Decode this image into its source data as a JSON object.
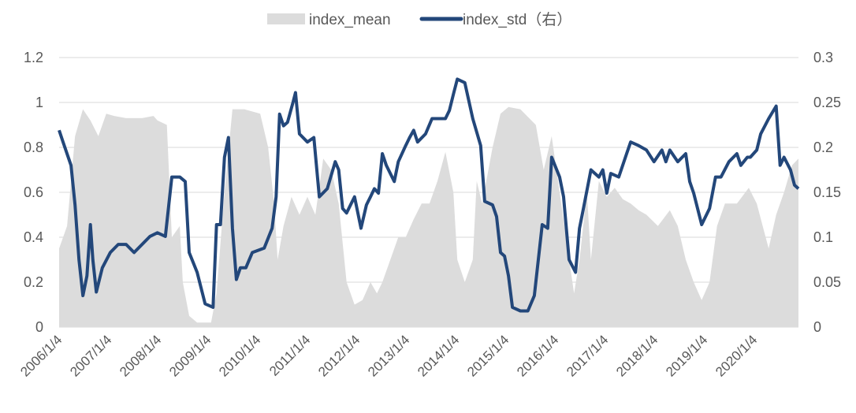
{
  "chart_data": {
    "type": "area+line",
    "title": "",
    "legend_position": "top-center",
    "grid": true,
    "colors": {
      "index_mean": "#dcdcdc",
      "index_std": "#23477a",
      "grid": "#d9d9d9"
    },
    "left_axis": {
      "ylim": [
        0,
        1.2
      ],
      "ticks": [
        "0",
        "0.2",
        "0.4",
        "0.6",
        "0.8",
        "1",
        "1.2"
      ]
    },
    "right_axis": {
      "ylim": [
        0,
        0.3
      ],
      "ticks": [
        "0",
        "0.05",
        "0.1",
        "0.15",
        "0.2",
        "0.25",
        "0.3"
      ]
    },
    "x_range_years": [
      2006.0,
      2020.89
    ],
    "x_ticks": [
      "2006/1/4",
      "2007/1/4",
      "2008/1/4",
      "2009/1/4",
      "2010/1/4",
      "2011/1/4",
      "2012/1/4",
      "2013/1/4",
      "2014/1/4",
      "2015/1/4",
      "2016/1/4",
      "2017/1/4",
      "2018/1/4",
      "2019/1/4",
      "2020/1/4"
    ],
    "series": [
      {
        "name": "index_mean",
        "axis": "left",
        "kind": "area",
        "points": [
          [
            2006.0,
            0.35
          ],
          [
            2006.16,
            0.45
          ],
          [
            2006.32,
            0.85
          ],
          [
            2006.48,
            0.97
          ],
          [
            2006.63,
            0.92
          ],
          [
            2006.79,
            0.85
          ],
          [
            2006.95,
            0.95
          ],
          [
            2007.11,
            0.94
          ],
          [
            2007.35,
            0.93
          ],
          [
            2007.67,
            0.93
          ],
          [
            2007.9,
            0.94
          ],
          [
            2007.98,
            0.92
          ],
          [
            2008.17,
            0.9
          ],
          [
            2008.27,
            0.4
          ],
          [
            2008.43,
            0.45
          ],
          [
            2008.49,
            0.2
          ],
          [
            2008.62,
            0.05
          ],
          [
            2008.78,
            0.02
          ],
          [
            2009.06,
            0.02
          ],
          [
            2009.17,
            0.15
          ],
          [
            2009.33,
            0.6
          ],
          [
            2009.49,
            0.97
          ],
          [
            2009.73,
            0.97
          ],
          [
            2010.05,
            0.95
          ],
          [
            2010.21,
            0.8
          ],
          [
            2010.33,
            0.55
          ],
          [
            2010.4,
            0.3
          ],
          [
            2010.52,
            0.45
          ],
          [
            2010.68,
            0.58
          ],
          [
            2010.84,
            0.5
          ],
          [
            2011.0,
            0.58
          ],
          [
            2011.16,
            0.5
          ],
          [
            2011.32,
            0.75
          ],
          [
            2011.48,
            0.7
          ],
          [
            2011.63,
            0.55
          ],
          [
            2011.79,
            0.2
          ],
          [
            2011.95,
            0.1
          ],
          [
            2012.11,
            0.12
          ],
          [
            2012.27,
            0.2
          ],
          [
            2012.4,
            0.15
          ],
          [
            2012.51,
            0.2
          ],
          [
            2012.67,
            0.3
          ],
          [
            2012.83,
            0.4
          ],
          [
            2012.98,
            0.4
          ],
          [
            2013.14,
            0.48
          ],
          [
            2013.3,
            0.55
          ],
          [
            2013.46,
            0.55
          ],
          [
            2013.62,
            0.65
          ],
          [
            2013.78,
            0.78
          ],
          [
            2013.94,
            0.6
          ],
          [
            2014.02,
            0.3
          ],
          [
            2014.17,
            0.2
          ],
          [
            2014.33,
            0.3
          ],
          [
            2014.41,
            0.65
          ],
          [
            2014.52,
            0.55
          ],
          [
            2014.73,
            0.8
          ],
          [
            2014.89,
            0.95
          ],
          [
            2015.05,
            0.98
          ],
          [
            2015.29,
            0.97
          ],
          [
            2015.6,
            0.9
          ],
          [
            2015.76,
            0.7
          ],
          [
            2015.92,
            0.85
          ],
          [
            2016.08,
            0.6
          ],
          [
            2016.24,
            0.35
          ],
          [
            2016.37,
            0.15
          ],
          [
            2016.48,
            0.3
          ],
          [
            2016.63,
            0.6
          ],
          [
            2016.71,
            0.3
          ],
          [
            2016.87,
            0.65
          ],
          [
            2017.03,
            0.58
          ],
          [
            2017.19,
            0.62
          ],
          [
            2017.35,
            0.57
          ],
          [
            2017.51,
            0.55
          ],
          [
            2017.67,
            0.52
          ],
          [
            2017.83,
            0.5
          ],
          [
            2018.06,
            0.45
          ],
          [
            2018.3,
            0.52
          ],
          [
            2018.46,
            0.45
          ],
          [
            2018.62,
            0.3
          ],
          [
            2018.78,
            0.2
          ],
          [
            2018.94,
            0.12
          ],
          [
            2019.1,
            0.2
          ],
          [
            2019.25,
            0.45
          ],
          [
            2019.41,
            0.55
          ],
          [
            2019.65,
            0.55
          ],
          [
            2019.89,
            0.62
          ],
          [
            2020.05,
            0.55
          ],
          [
            2020.17,
            0.45
          ],
          [
            2020.29,
            0.35
          ],
          [
            2020.44,
            0.5
          ],
          [
            2020.6,
            0.6
          ],
          [
            2020.76,
            0.72
          ],
          [
            2020.89,
            0.75
          ]
        ]
      },
      {
        "name": "index_std（右）",
        "axis": "right",
        "kind": "line",
        "points": [
          [
            2006.0,
            0.219
          ],
          [
            2006.08,
            0.206
          ],
          [
            2006.24,
            0.18
          ],
          [
            2006.32,
            0.136
          ],
          [
            2006.4,
            0.075
          ],
          [
            2006.48,
            0.035
          ],
          [
            2006.56,
            0.057
          ],
          [
            2006.63,
            0.114
          ],
          [
            2006.68,
            0.075
          ],
          [
            2006.75,
            0.039
          ],
          [
            2006.87,
            0.066
          ],
          [
            2007.03,
            0.083
          ],
          [
            2007.19,
            0.092
          ],
          [
            2007.35,
            0.092
          ],
          [
            2007.51,
            0.083
          ],
          [
            2007.67,
            0.092
          ],
          [
            2007.83,
            0.101
          ],
          [
            2007.98,
            0.105
          ],
          [
            2008.14,
            0.101
          ],
          [
            2008.27,
            0.167
          ],
          [
            2008.43,
            0.167
          ],
          [
            2008.54,
            0.162
          ],
          [
            2008.62,
            0.083
          ],
          [
            2008.78,
            0.061
          ],
          [
            2008.94,
            0.026
          ],
          [
            2009.1,
            0.022
          ],
          [
            2009.17,
            0.114
          ],
          [
            2009.25,
            0.114
          ],
          [
            2009.33,
            0.189
          ],
          [
            2009.41,
            0.211
          ],
          [
            2009.49,
            0.11
          ],
          [
            2009.57,
            0.053
          ],
          [
            2009.65,
            0.066
          ],
          [
            2009.76,
            0.066
          ],
          [
            2009.89,
            0.083
          ],
          [
            2010.13,
            0.088
          ],
          [
            2010.29,
            0.11
          ],
          [
            2010.37,
            0.145
          ],
          [
            2010.44,
            0.237
          ],
          [
            2010.52,
            0.224
          ],
          [
            2010.6,
            0.228
          ],
          [
            2010.71,
            0.25
          ],
          [
            2010.76,
            0.261
          ],
          [
            2010.84,
            0.215
          ],
          [
            2011.0,
            0.206
          ],
          [
            2011.13,
            0.211
          ],
          [
            2011.24,
            0.145
          ],
          [
            2011.4,
            0.154
          ],
          [
            2011.56,
            0.184
          ],
          [
            2011.63,
            0.175
          ],
          [
            2011.71,
            0.132
          ],
          [
            2011.79,
            0.127
          ],
          [
            2011.95,
            0.145
          ],
          [
            2012.08,
            0.11
          ],
          [
            2012.19,
            0.136
          ],
          [
            2012.27,
            0.145
          ],
          [
            2012.35,
            0.154
          ],
          [
            2012.43,
            0.149
          ],
          [
            2012.51,
            0.193
          ],
          [
            2012.59,
            0.18
          ],
          [
            2012.75,
            0.162
          ],
          [
            2012.83,
            0.184
          ],
          [
            2012.98,
            0.202
          ],
          [
            2013.06,
            0.211
          ],
          [
            2013.14,
            0.219
          ],
          [
            2013.22,
            0.206
          ],
          [
            2013.38,
            0.215
          ],
          [
            2013.51,
            0.232
          ],
          [
            2013.62,
            0.232
          ],
          [
            2013.78,
            0.232
          ],
          [
            2013.86,
            0.241
          ],
          [
            2013.94,
            0.259
          ],
          [
            2014.02,
            0.276
          ],
          [
            2014.17,
            0.272
          ],
          [
            2014.33,
            0.232
          ],
          [
            2014.49,
            0.202
          ],
          [
            2014.57,
            0.14
          ],
          [
            2014.73,
            0.136
          ],
          [
            2014.81,
            0.123
          ],
          [
            2014.89,
            0.083
          ],
          [
            2014.97,
            0.079
          ],
          [
            2015.05,
            0.057
          ],
          [
            2015.13,
            0.022
          ],
          [
            2015.29,
            0.018
          ],
          [
            2015.44,
            0.018
          ],
          [
            2015.57,
            0.035
          ],
          [
            2015.73,
            0.114
          ],
          [
            2015.84,
            0.11
          ],
          [
            2015.92,
            0.189
          ],
          [
            2016.08,
            0.167
          ],
          [
            2016.16,
            0.145
          ],
          [
            2016.27,
            0.075
          ],
          [
            2016.4,
            0.061
          ],
          [
            2016.48,
            0.11
          ],
          [
            2016.56,
            0.132
          ],
          [
            2016.71,
            0.175
          ],
          [
            2016.87,
            0.167
          ],
          [
            2016.95,
            0.175
          ],
          [
            2017.03,
            0.149
          ],
          [
            2017.11,
            0.171
          ],
          [
            2017.27,
            0.167
          ],
          [
            2017.43,
            0.193
          ],
          [
            2017.51,
            0.206
          ],
          [
            2017.67,
            0.202
          ],
          [
            2017.83,
            0.197
          ],
          [
            2017.98,
            0.184
          ],
          [
            2018.14,
            0.197
          ],
          [
            2018.22,
            0.184
          ],
          [
            2018.3,
            0.197
          ],
          [
            2018.46,
            0.184
          ],
          [
            2018.62,
            0.193
          ],
          [
            2018.7,
            0.162
          ],
          [
            2018.78,
            0.149
          ],
          [
            2018.94,
            0.114
          ],
          [
            2019.1,
            0.132
          ],
          [
            2019.22,
            0.167
          ],
          [
            2019.33,
            0.167
          ],
          [
            2019.49,
            0.184
          ],
          [
            2019.65,
            0.193
          ],
          [
            2019.73,
            0.18
          ],
          [
            2019.86,
            0.189
          ],
          [
            2019.92,
            0.189
          ],
          [
            2020.05,
            0.197
          ],
          [
            2020.13,
            0.215
          ],
          [
            2020.29,
            0.232
          ],
          [
            2020.44,
            0.246
          ],
          [
            2020.52,
            0.18
          ],
          [
            2020.6,
            0.189
          ],
          [
            2020.73,
            0.175
          ],
          [
            2020.81,
            0.158
          ],
          [
            2020.89,
            0.154
          ]
        ]
      }
    ]
  }
}
